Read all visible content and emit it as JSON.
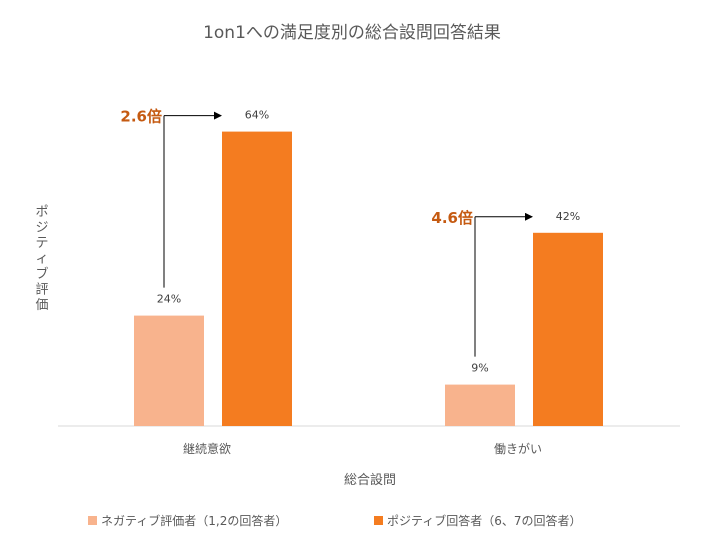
{
  "chart_data": {
    "type": "bar",
    "title": "1on1への満足度別の総合設問回答結果",
    "xlabel": "総合設問",
    "ylabel": "ポジティブ評価",
    "categories": [
      "継続意欲",
      "働きがい"
    ],
    "series": [
      {
        "name": "ネガティブ評価者（1,2の回答者）",
        "values": [
          24,
          9
        ],
        "labels": [
          "24%",
          "9%"
        ],
        "color": "#F8B38D"
      },
      {
        "name": "ポジティブ回答者（6、7の回答者）",
        "values": [
          64,
          42
        ],
        "labels": [
          "64%",
          "42%"
        ],
        "color": "#F47C20"
      }
    ],
    "annotations": [
      "2.6倍",
      "4.6倍"
    ],
    "annotation_color": "#C55A11",
    "ylim": [
      0,
      70
    ],
    "grid": false,
    "legend_position": "bottom"
  }
}
